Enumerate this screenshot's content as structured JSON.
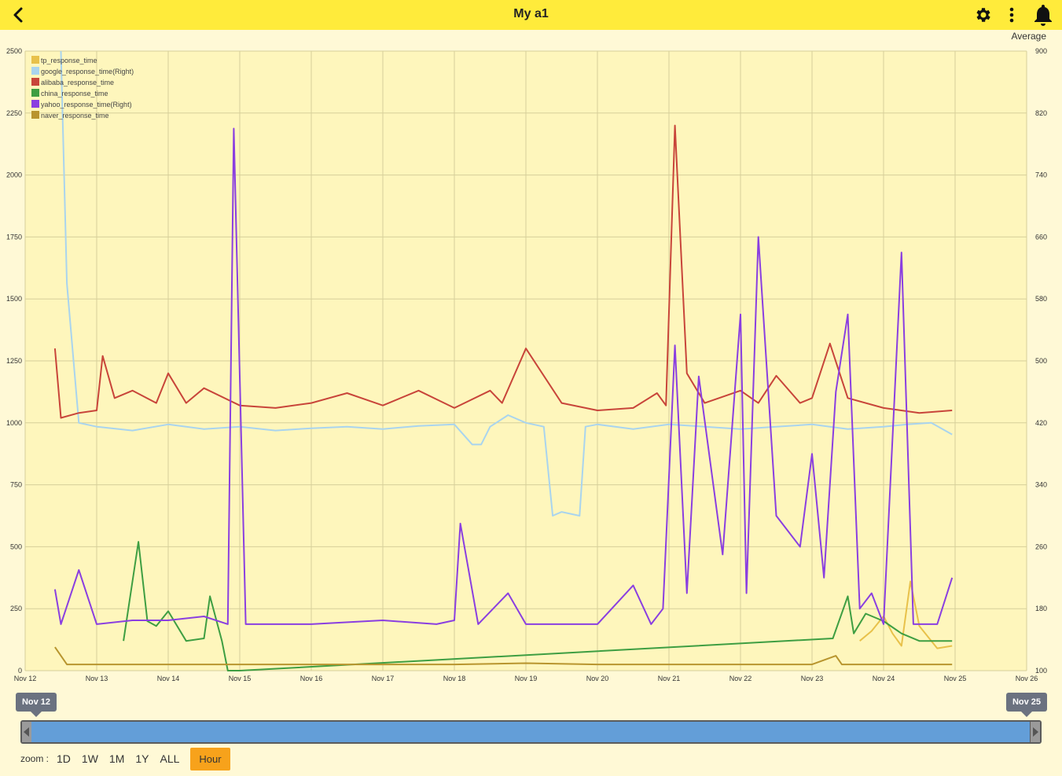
{
  "header": {
    "title": "My a1",
    "average_label": "Average"
  },
  "colors": {
    "header": "#FFEB3B",
    "plot_bg": "#FEF6BC",
    "page_bg": "#FFF9D6"
  },
  "navigator": {
    "start_label": "Nov 12",
    "end_label": "Nov 25"
  },
  "zoom": {
    "label": "zoom :",
    "buttons": [
      "1D",
      "1W",
      "1M",
      "1Y",
      "ALL"
    ],
    "active": "Hour"
  },
  "chart_data": {
    "type": "line",
    "title": "",
    "xlabel": "",
    "ylabel": "",
    "y_left": {
      "min": 0,
      "max": 2500,
      "ticks": [
        0,
        250,
        500,
        750,
        1000,
        1250,
        1500,
        1750,
        2000,
        2250,
        2500
      ]
    },
    "y_right": {
      "min": 100,
      "max": 900,
      "ticks": [
        100,
        180,
        260,
        340,
        420,
        500,
        580,
        660,
        740,
        820,
        900
      ]
    },
    "x_range": [
      "2023-11-12",
      "2023-11-26"
    ],
    "x_ticks": [
      "Nov 12",
      "Nov 13",
      "Nov 14",
      "Nov 15",
      "Nov 16",
      "Nov 17",
      "Nov 18",
      "Nov 19",
      "Nov 20",
      "Nov 21",
      "Nov 22",
      "Nov 23",
      "Nov 24",
      "Nov 25",
      "Nov 26"
    ],
    "grid": true,
    "legend_position": "top-left",
    "series": [
      {
        "name": "tp_response_time",
        "color": "#E8C14A",
        "axis": "left",
        "x": [
          "2023-11-23 16:00",
          "2023-11-23 20:00",
          "2023-11-24 00:00",
          "2023-11-24 03:00",
          "2023-11-24 06:00",
          "2023-11-24 09:00",
          "2023-11-24 12:00",
          "2023-11-24 18:00",
          "2023-11-24 23:00"
        ],
        "y": [
          120,
          160,
          220,
          150,
          100,
          360,
          180,
          90,
          100
        ]
      },
      {
        "name": "google_response_time(Right)",
        "color": "#A9D4EE",
        "axis": "right",
        "x": [
          "2023-11-12 12:00",
          "2023-11-12 14:00",
          "2023-11-12 18:00",
          "2023-11-13 00:00",
          "2023-11-13 12:00",
          "2023-11-14 00:00",
          "2023-11-14 12:00",
          "2023-11-15 00:00",
          "2023-11-15 12:00",
          "2023-11-16 00:00",
          "2023-11-16 12:00",
          "2023-11-17 00:00",
          "2023-11-17 12:00",
          "2023-11-18 00:00",
          "2023-11-18 06:00",
          "2023-11-18 09:00",
          "2023-11-18 12:00",
          "2023-11-18 18:00",
          "2023-11-19 00:00",
          "2023-11-19 06:00",
          "2023-11-19 09:00",
          "2023-11-19 12:00",
          "2023-11-19 18:00",
          "2023-11-19 20:00",
          "2023-11-20 00:00",
          "2023-11-20 12:00",
          "2023-11-21 00:00",
          "2023-11-21 12:00",
          "2023-11-22 00:00",
          "2023-11-22 12:00",
          "2023-11-23 00:00",
          "2023-11-23 12:00",
          "2023-11-24 00:00",
          "2023-11-24 08:00",
          "2023-11-24 16:00",
          "2023-11-24 23:00"
        ],
        "y": [
          900,
          600,
          420,
          415,
          410,
          418,
          412,
          415,
          410,
          413,
          415,
          412,
          416,
          418,
          392,
          392,
          415,
          430,
          420,
          415,
          300,
          305,
          300,
          415,
          418,
          412,
          418,
          415,
          412,
          415,
          418,
          412,
          415,
          418,
          420,
          405
        ]
      },
      {
        "name": "alibaba_response_time",
        "color": "#C8453A",
        "axis": "left",
        "x": [
          "2023-11-12 10:00",
          "2023-11-12 12:00",
          "2023-11-12 18:00",
          "2023-11-13 00:00",
          "2023-11-13 02:00",
          "2023-11-13 06:00",
          "2023-11-13 12:00",
          "2023-11-13 20:00",
          "2023-11-14 00:00",
          "2023-11-14 06:00",
          "2023-11-14 12:00",
          "2023-11-15 00:00",
          "2023-11-15 12:00",
          "2023-11-16 00:00",
          "2023-11-16 12:00",
          "2023-11-17 00:00",
          "2023-11-17 12:00",
          "2023-11-18 00:00",
          "2023-11-18 12:00",
          "2023-11-18 16:00",
          "2023-11-19 00:00",
          "2023-11-19 12:00",
          "2023-11-20 00:00",
          "2023-11-20 12:00",
          "2023-11-20 20:00",
          "2023-11-20 23:00",
          "2023-11-21 02:00",
          "2023-11-21 06:00",
          "2023-11-21 12:00",
          "2023-11-22 00:00",
          "2023-11-22 06:00",
          "2023-11-22 12:00",
          "2023-11-22 20:00",
          "2023-11-23 00:00",
          "2023-11-23 06:00",
          "2023-11-23 12:00",
          "2023-11-24 00:00",
          "2023-11-24 12:00",
          "2023-11-24 23:00"
        ],
        "y": [
          1300,
          1020,
          1040,
          1050,
          1270,
          1100,
          1130,
          1080,
          1200,
          1080,
          1140,
          1070,
          1060,
          1080,
          1120,
          1070,
          1130,
          1060,
          1130,
          1080,
          1300,
          1080,
          1050,
          1060,
          1120,
          1070,
          2200,
          1200,
          1080,
          1130,
          1080,
          1190,
          1080,
          1100,
          1320,
          1100,
          1060,
          1040,
          1050
        ]
      },
      {
        "name": "china_response_time",
        "color": "#3E9E42",
        "axis": "left",
        "x": [
          "2023-11-13 09:00",
          "2023-11-13 14:00",
          "2023-11-13 17:00",
          "2023-11-13 20:00",
          "2023-11-14 00:00",
          "2023-11-14 06:00",
          "2023-11-14 12:00",
          "2023-11-14 14:00",
          "2023-11-14 18:00",
          "2023-11-14 20:00",
          "2023-11-15 00:00",
          "2023-11-23 07:00",
          "2023-11-23 12:00",
          "2023-11-23 14:00",
          "2023-11-23 18:00",
          "2023-11-24 00:00",
          "2023-11-24 06:00",
          "2023-11-24 12:00",
          "2023-11-24 23:00"
        ],
        "y": [
          120,
          520,
          200,
          180,
          240,
          120,
          130,
          300,
          120,
          0,
          0,
          130,
          300,
          150,
          230,
          200,
          150,
          120,
          120
        ]
      },
      {
        "name": "yahoo_response_time(Right)",
        "color": "#8A3FE0",
        "axis": "right",
        "x": [
          "2023-11-12 10:00",
          "2023-11-12 12:00",
          "2023-11-12 18:00",
          "2023-11-13 00:00",
          "2023-11-13 12:00",
          "2023-11-14 00:00",
          "2023-11-14 12:00",
          "2023-11-14 20:00",
          "2023-11-14 22:00",
          "2023-11-15 02:00",
          "2023-11-15 12:00",
          "2023-11-16 00:00",
          "2023-11-17 00:00",
          "2023-11-17 18:00",
          "2023-11-18 00:00",
          "2023-11-18 02:00",
          "2023-11-18 08:00",
          "2023-11-18 18:00",
          "2023-11-19 00:00",
          "2023-11-19 18:00",
          "2023-11-20 00:00",
          "2023-11-20 12:00",
          "2023-11-20 18:00",
          "2023-11-20 22:00",
          "2023-11-21 02:00",
          "2023-11-21 06:00",
          "2023-11-21 10:00",
          "2023-11-21 18:00",
          "2023-11-22 00:00",
          "2023-11-22 02:00",
          "2023-11-22 06:00",
          "2023-11-22 12:00",
          "2023-11-22 20:00",
          "2023-11-23 00:00",
          "2023-11-23 04:00",
          "2023-11-23 08:00",
          "2023-11-23 12:00",
          "2023-11-23 16:00",
          "2023-11-23 20:00",
          "2023-11-24 00:00",
          "2023-11-24 06:00",
          "2023-11-24 10:00",
          "2023-11-24 18:00",
          "2023-11-24 23:00"
        ],
        "y": [
          205,
          160,
          230,
          160,
          165,
          165,
          170,
          160,
          800,
          160,
          160,
          160,
          165,
          160,
          165,
          290,
          160,
          200,
          160,
          160,
          160,
          210,
          160,
          180,
          520,
          200,
          480,
          250,
          560,
          200,
          660,
          300,
          260,
          380,
          220,
          460,
          560,
          180,
          200,
          160,
          640,
          160,
          160,
          220
        ]
      },
      {
        "name": "naver_response_time",
        "color": "#B8952E",
        "axis": "left",
        "x": [
          "2023-11-12 10:00",
          "2023-11-12 14:00",
          "2023-11-13 00:00",
          "2023-11-14 00:00",
          "2023-11-15 00:00",
          "2023-11-16 00:00",
          "2023-11-17 00:00",
          "2023-11-18 00:00",
          "2023-11-19 00:00",
          "2023-11-20 00:00",
          "2023-11-21 00:00",
          "2023-11-22 00:00",
          "2023-11-23 00:00",
          "2023-11-23 08:00",
          "2023-11-23 10:00",
          "2023-11-24 00:00",
          "2023-11-24 23:00"
        ],
        "y": [
          95,
          25,
          25,
          25,
          25,
          25,
          25,
          25,
          30,
          25,
          25,
          25,
          25,
          60,
          25,
          25,
          25
        ]
      }
    ]
  }
}
